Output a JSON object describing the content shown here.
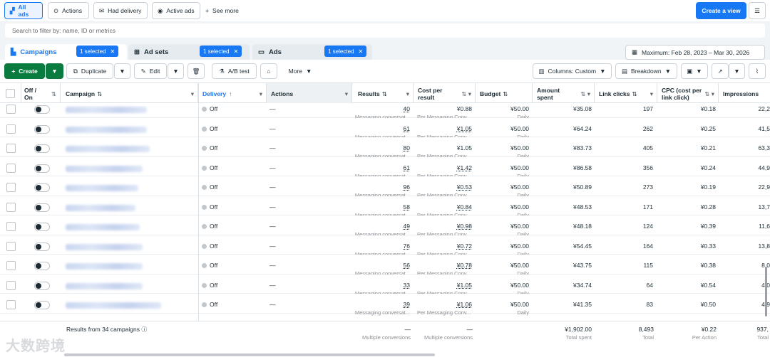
{
  "topbar": {
    "filters": [
      "All ads",
      "Actions",
      "Had delivery",
      "Active ads"
    ],
    "see_more": "See more",
    "create_view": "Create a view"
  },
  "search": {
    "placeholder": "Search to filter by: name, ID or metrics"
  },
  "levels": {
    "campaigns": "Campaigns",
    "ad_sets": "Ad sets",
    "ads": "Ads",
    "selected": "1 selected",
    "date_range": "Maximum: Feb 28, 2023 – Mar 30, 2026"
  },
  "toolbar": {
    "create": "Create",
    "duplicate": "Duplicate",
    "edit": "Edit",
    "ab_test": "A/B test",
    "more": "More",
    "columns": "Columns: Custom",
    "breakdown": "Breakdown"
  },
  "columns": {
    "off_on": "Off / On",
    "campaign": "Campaign",
    "delivery": "Delivery",
    "actions": "Actions",
    "results": "Results",
    "cost_per_result": "Cost per result",
    "budget": "Budget",
    "amount_spent": "Amount spent",
    "link_clicks": "Link clicks",
    "cpc": "CPC (cost per link click)",
    "impressions": "Impressions"
  },
  "rows": [
    {
      "delivery": "Off",
      "actions": "—",
      "results": "40",
      "results_sub": "Messaging conversat...",
      "cost": "¥0.88",
      "cost_sub": "Per Messaging Conv...",
      "budget": "¥50.00",
      "budget_sub": "Daily",
      "spent": "¥35.08",
      "clicks": "197",
      "cpc": "¥0.18",
      "impressions": "22,2"
    },
    {
      "delivery": "Off",
      "actions": "—",
      "results": "61",
      "results_sub": "Messaging conversat...",
      "cost": "¥1.05",
      "cost_sub": "Per Messaging Conv...",
      "budget": "¥50.00",
      "budget_sub": "Daily",
      "spent": "¥64.24",
      "clicks": "262",
      "cpc": "¥0.25",
      "impressions": "41,5"
    },
    {
      "delivery": "Off",
      "actions": "—",
      "results": "80",
      "results_sub": "Messaging conversat...",
      "cost": "¥1.05",
      "cost_sub": "Per Messaging Conv...",
      "budget": "¥50.00",
      "budget_sub": "Daily",
      "spent": "¥83.73",
      "clicks": "405",
      "cpc": "¥0.21",
      "impressions": "63,3"
    },
    {
      "delivery": "Off",
      "actions": "—",
      "results": "61",
      "results_sub": "Messaging conversat...",
      "cost": "¥1.42",
      "cost_sub": "Per Messaging Conv...",
      "budget": "¥50.00",
      "budget_sub": "Daily",
      "spent": "¥86.58",
      "clicks": "356",
      "cpc": "¥0.24",
      "impressions": "44,9"
    },
    {
      "delivery": "Off",
      "actions": "—",
      "results": "96",
      "results_sub": "Messaging conversat...",
      "cost": "¥0.53",
      "cost_sub": "Per Messaging Conv...",
      "budget": "¥50.00",
      "budget_sub": "Daily",
      "spent": "¥50.89",
      "clicks": "273",
      "cpc": "¥0.19",
      "impressions": "22,9"
    },
    {
      "delivery": "Off",
      "actions": "—",
      "results": "58",
      "results_sub": "Messaging conversat...",
      "cost": "¥0.84",
      "cost_sub": "Per Messaging Conv...",
      "budget": "¥50.00",
      "budget_sub": "Daily",
      "spent": "¥48.53",
      "clicks": "171",
      "cpc": "¥0.28",
      "impressions": "13,7"
    },
    {
      "delivery": "Off",
      "actions": "—",
      "results": "49",
      "results_sub": "Messaging conversat...",
      "cost": "¥0.98",
      "cost_sub": "Per Messaging Conv...",
      "budget": "¥50.00",
      "budget_sub": "Daily",
      "spent": "¥48.18",
      "clicks": "124",
      "cpc": "¥0.39",
      "impressions": "11,6"
    },
    {
      "delivery": "Off",
      "actions": "—",
      "results": "76",
      "results_sub": "Messaging conversat...",
      "cost": "¥0.72",
      "cost_sub": "Per Messaging Conv...",
      "budget": "¥50.00",
      "budget_sub": "Daily",
      "spent": "¥54.45",
      "clicks": "164",
      "cpc": "¥0.33",
      "impressions": "13,8"
    },
    {
      "delivery": "Off",
      "actions": "—",
      "results": "56",
      "results_sub": "Messaging conversat...",
      "cost": "¥0.78",
      "cost_sub": "Per Messaging Conv...",
      "budget": "¥50.00",
      "budget_sub": "Daily",
      "spent": "¥43.75",
      "clicks": "115",
      "cpc": "¥0.38",
      "impressions": "8,0"
    },
    {
      "delivery": "Off",
      "actions": "—",
      "results": "33",
      "results_sub": "Messaging conversat...",
      "cost": "¥1.05",
      "cost_sub": "Per Messaging Conv...",
      "budget": "¥50.00",
      "budget_sub": "Daily",
      "spent": "¥34.74",
      "clicks": "64",
      "cpc": "¥0.54",
      "impressions": "4,0"
    },
    {
      "delivery": "Off",
      "actions": "—",
      "results": "39",
      "results_sub": "Messaging conversat...",
      "cost": "¥1.06",
      "cost_sub": "Per Messaging Conv...",
      "budget": "¥50.00",
      "budget_sub": "Daily",
      "spent": "¥41.35",
      "clicks": "83",
      "cpc": "¥0.50",
      "impressions": "4,9"
    }
  ],
  "footer": {
    "summary": "Results from 34 campaigns",
    "results": "—",
    "results_sub": "Multiple conversions",
    "cost": "—",
    "cost_sub": "Multiple conversions",
    "spent": "¥1,902.00",
    "spent_sub": "Total spent",
    "clicks": "8,493",
    "clicks_sub": "Total",
    "cpc": "¥0.22",
    "cpc_sub": "Per Action",
    "impressions": "937,",
    "impressions_sub": "Total"
  },
  "watermark": "大数跨境",
  "colors": {
    "accent": "#1877f2",
    "create_green": "#0a7b3e"
  }
}
